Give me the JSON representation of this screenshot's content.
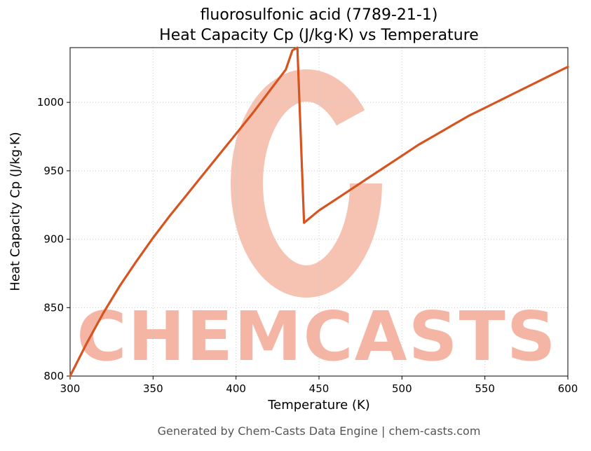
{
  "chart_data": {
    "type": "line",
    "title": "fluorosulfonic acid (7789-21-1)",
    "subtitle": "Heat Capacity Cp (J/kg·K) vs Temperature",
    "xlabel": "Temperature (K)",
    "ylabel": "Heat Capacity Cp (J/kg·K)",
    "xlim": [
      300,
      600
    ],
    "ylim": [
      800,
      1040
    ],
    "xticks": [
      300,
      350,
      400,
      450,
      500,
      550,
      600
    ],
    "yticks": [
      800,
      850,
      900,
      950,
      1000
    ],
    "grid": true,
    "legend": "none",
    "line_color": "#d5541f",
    "series": [
      {
        "name": "Heat Capacity Cp",
        "x": [
          300,
          310,
          320,
          330,
          340,
          350,
          360,
          370,
          380,
          390,
          400,
          410,
          420,
          430,
          434,
          437,
          441,
          450,
          460,
          470,
          480,
          490,
          500,
          510,
          520,
          530,
          540,
          550,
          560,
          570,
          580,
          590,
          600
        ],
        "y": [
          800,
          824,
          846,
          866,
          884,
          901,
          917,
          932,
          947,
          962,
          977,
          992,
          1008,
          1024,
          1038,
          1040,
          912,
          921,
          929,
          937,
          945,
          953,
          961,
          969,
          976,
          983,
          990,
          996,
          1002,
          1008,
          1014,
          1020,
          1026
        ]
      }
    ]
  },
  "watermark": {
    "text": "CHEMCASTS",
    "text_color": "#f5b5a4",
    "logo_icon": "chemcasts-brush-circle-logo",
    "logo_color": "#f6c2b2"
  },
  "footer": {
    "text": "Generated by Chem-Casts Data Engine | chem-casts.com"
  }
}
